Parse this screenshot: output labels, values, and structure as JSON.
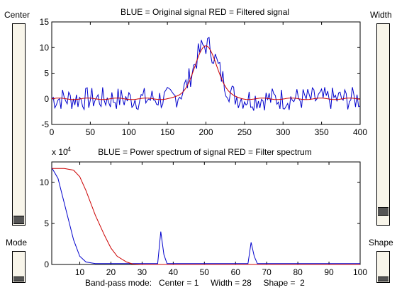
{
  "controls": {
    "center_label": "Center",
    "width_label": "Width",
    "mode_label": "Mode",
    "shape_label": "Shape",
    "center_value": 0.04,
    "width_value": 0.1,
    "mode_value": 0.2,
    "shape_value": 0.2
  },
  "status_text": "Band-pass mode:   Center = 1     Width = 28     Shape =  2",
  "colors": {
    "original": "#0000cc",
    "filtered": "#cc0000",
    "thumb": "#555555"
  },
  "chart_data": [
    {
      "type": "line",
      "title": "BLUE = Original signal        RED = Filtered signal",
      "xlim": [
        0,
        400
      ],
      "ylim": [
        -5,
        15
      ],
      "xticks": [
        "0",
        "50",
        "100",
        "150",
        "200",
        "250",
        "300",
        "350",
        "400"
      ],
      "yticks": [
        "-5",
        "0",
        "5",
        "10",
        "15"
      ],
      "series": [
        {
          "color": "blue",
          "description": "noisy gaussian pulse peaking near x=200 at ~11"
        },
        {
          "color": "red",
          "x": [
            0,
            100,
            160,
            180,
            200,
            220,
            240,
            300,
            400
          ],
          "y": [
            0,
            0,
            0.5,
            4,
            10,
            4,
            0.5,
            0,
            0
          ]
        }
      ]
    },
    {
      "type": "line",
      "title": "BLUE = Power spectrum of signal      RED = Filter spectrum",
      "scale_label": "x 10",
      "scale_exponent": "4",
      "xlim": [
        1,
        100
      ],
      "ylim": [
        0,
        12.5
      ],
      "xticks": [
        "10",
        "20",
        "30",
        "40",
        "50",
        "60",
        "70",
        "80",
        "90",
        "100"
      ],
      "yticks": [
        "0",
        "5",
        "10"
      ],
      "series": [
        {
          "color": "blue",
          "x": [
            1,
            3,
            5,
            8,
            10,
            12,
            15,
            35,
            36,
            37,
            38,
            64,
            65,
            66,
            67,
            100
          ],
          "y": [
            11.8,
            10.5,
            7.5,
            3,
            1,
            0.3,
            0.1,
            0.1,
            4,
            1.2,
            0.1,
            0.1,
            2.7,
            1,
            0.1,
            0.1
          ]
        },
        {
          "color": "red",
          "x": [
            1,
            5,
            8,
            10,
            12,
            15,
            18,
            20,
            22,
            25,
            27,
            30,
            100
          ],
          "y": [
            11.7,
            11.7,
            11.5,
            10.7,
            9,
            6,
            3.5,
            2,
            1,
            0.3,
            0.05,
            0,
            0
          ]
        }
      ]
    }
  ]
}
